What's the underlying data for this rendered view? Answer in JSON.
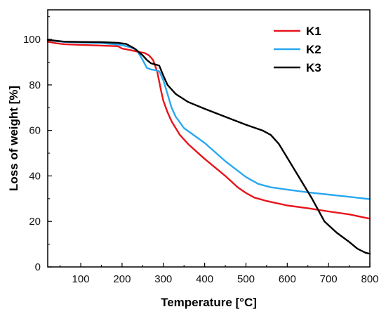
{
  "chart_data": {
    "type": "line",
    "title": "",
    "xlabel": "Temperature [°C]",
    "ylabel": "Loss of weight [%]",
    "xlim": [
      20,
      800
    ],
    "ylim": [
      0,
      113
    ],
    "xticks": [
      100,
      200,
      300,
      400,
      500,
      600,
      700,
      800
    ],
    "yticks": [
      0,
      20,
      40,
      60,
      80,
      100
    ],
    "grid": false,
    "legend": "top-right",
    "series": [
      {
        "name": "K1",
        "color": "#e8141b",
        "x": [
          20,
          40,
          60,
          100,
          150,
          190,
          200,
          220,
          240,
          255,
          265,
          275,
          285,
          295,
          300,
          310,
          320,
          340,
          360,
          400,
          450,
          480,
          500,
          520,
          550,
          600,
          650,
          700,
          750,
          800
        ],
        "y": [
          99,
          98.3,
          97.9,
          97.6,
          97.3,
          97,
          96,
          95.3,
          94.5,
          94,
          93,
          91,
          86,
          77,
          73,
          68,
          64,
          58,
          54,
          47.5,
          40,
          35,
          32.5,
          30.5,
          29,
          27,
          25.8,
          24.4,
          23.1,
          21.2
        ]
      },
      {
        "name": "K2",
        "color": "#2aa8f0",
        "x": [
          20,
          40,
          60,
          100,
          150,
          200,
          220,
          235,
          250,
          260,
          270,
          280,
          290,
          300,
          310,
          320,
          330,
          350,
          400,
          450,
          500,
          530,
          560,
          600,
          650,
          700,
          750,
          800
        ],
        "y": [
          100,
          99.2,
          98.9,
          98.6,
          98.4,
          97.5,
          96.5,
          95.5,
          91,
          87.5,
          86.8,
          86.5,
          86,
          82,
          76,
          70,
          66,
          61,
          54.5,
          46.5,
          39.5,
          36.5,
          35,
          34,
          32.8,
          31.8,
          30.8,
          29.8
        ]
      },
      {
        "name": "K3",
        "color": "#000000",
        "x": [
          20,
          40,
          60,
          100,
          150,
          190,
          210,
          230,
          250,
          260,
          270,
          280,
          290,
          300,
          310,
          330,
          360,
          400,
          450,
          500,
          540,
          560,
          580,
          600,
          630,
          660,
          690,
          720,
          750,
          770,
          790,
          800
        ],
        "y": [
          99.8,
          99.4,
          99,
          98.9,
          98.8,
          98.5,
          98,
          96,
          93,
          91,
          89.5,
          89,
          88.5,
          84,
          80,
          76,
          72.5,
          69.5,
          66,
          62.5,
          60,
          58,
          54,
          48,
          39,
          30,
          20,
          15,
          11,
          8,
          6.2,
          5.8
        ]
      }
    ]
  }
}
